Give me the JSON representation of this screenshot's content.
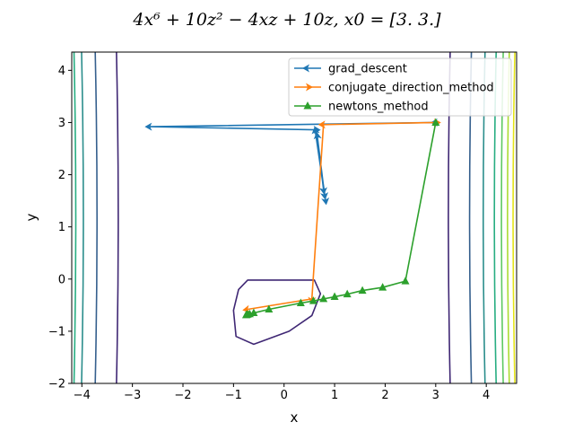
{
  "chart_data": {
    "type": "line",
    "title": "4x⁶ + 10z² − 4xz + 10z, x0 = [3. 3.]",
    "xlabel": "x",
    "ylabel": "y",
    "xlim": [
      -4.2,
      4.6
    ],
    "ylim": [
      -2.0,
      4.35
    ],
    "xticks": [
      "−4",
      "−3",
      "−2",
      "−1",
      "0",
      "1",
      "2",
      "3",
      "4"
    ],
    "yticks": [
      "−2",
      "−1",
      "0",
      "1",
      "2",
      "3",
      "4"
    ],
    "grid": false,
    "legend_position": "top-right",
    "series": [
      {
        "name": "grad_descent",
        "color": "#1f77b4",
        "marker": "arrow-left",
        "points": [
          [
            3.0,
            3.0
          ],
          [
            -2.65,
            2.92
          ],
          [
            0.62,
            2.86
          ],
          [
            0.82,
            1.52
          ],
          [
            0.62,
            2.82
          ],
          [
            0.8,
            1.62
          ],
          [
            0.66,
            2.72
          ],
          [
            0.78,
            1.72
          ]
        ]
      },
      {
        "name": "conjugate_direction_method",
        "color": "#ff7f0e",
        "marker": "arrow-right",
        "points": [
          [
            3.0,
            3.0
          ],
          [
            0.78,
            2.96
          ],
          [
            0.55,
            -0.38
          ],
          [
            -0.72,
            -0.58
          ]
        ]
      },
      {
        "name": "newtons_method",
        "color": "#2ca02c",
        "marker": "triangle-up",
        "points": [
          [
            3.0,
            3.0
          ],
          [
            2.4,
            -0.04
          ],
          [
            1.95,
            -0.16
          ],
          [
            1.55,
            -0.22
          ],
          [
            1.25,
            -0.29
          ],
          [
            1.0,
            -0.34
          ],
          [
            0.78,
            -0.38
          ],
          [
            0.58,
            -0.42
          ],
          [
            0.33,
            -0.46
          ],
          [
            -0.3,
            -0.58
          ],
          [
            -0.6,
            -0.65
          ],
          [
            -0.68,
            -0.67
          ],
          [
            -0.72,
            -0.68
          ],
          [
            -0.74,
            -0.685
          ],
          [
            -0.75,
            -0.69
          ]
        ]
      }
    ],
    "contours": {
      "colors": [
        "#3f2774",
        "#355f8d",
        "#2b8e8c",
        "#27ad81",
        "#5ec962",
        "#aadc32",
        "#e4e419"
      ],
      "vertical_levels_x": [
        [
          -3.28,
          3.25
        ],
        [
          -3.7,
          3.67
        ],
        [
          -3.97,
          3.94
        ],
        [
          -4.12,
          4.16
        ],
        [
          -4.3,
          4.3
        ],
        [
          -4.4,
          4.42
        ],
        [
          -4.6,
          4.53
        ]
      ]
    }
  }
}
